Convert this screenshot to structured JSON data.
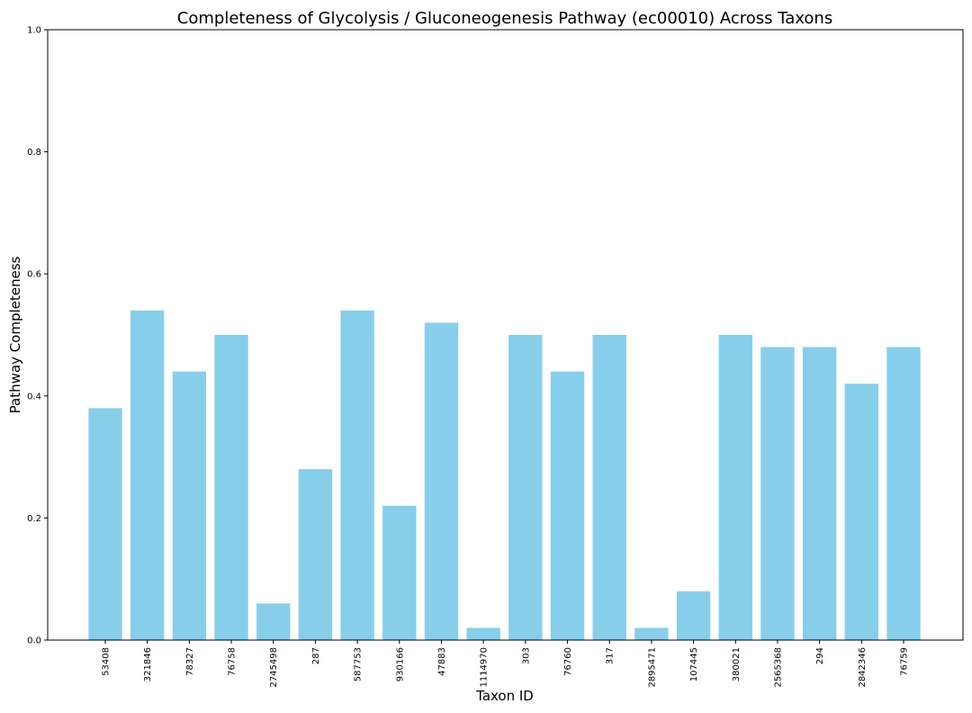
{
  "chart_data": {
    "type": "bar",
    "title": "Completeness of Glycolysis / Gluconeogenesis Pathway (ec00010) Across Taxons",
    "xlabel": "Taxon ID",
    "ylabel": "Pathway Completeness",
    "ylim": [
      0,
      1
    ],
    "yticks": [
      "0.0",
      "0.2",
      "0.4",
      "0.6",
      "0.8",
      "1.0"
    ],
    "categories": [
      "53408",
      "321846",
      "78327",
      "76758",
      "2745498",
      "287",
      "587753",
      "930166",
      "47883",
      "1114970",
      "303",
      "76760",
      "317",
      "2895471",
      "107445",
      "380021",
      "2565368",
      "294",
      "2842346",
      "76759"
    ],
    "values": [
      0.38,
      0.54,
      0.44,
      0.5,
      0.06,
      0.28,
      0.54,
      0.22,
      0.52,
      0.02,
      0.5,
      0.44,
      0.5,
      0.02,
      0.08,
      0.5,
      0.48,
      0.48,
      0.42,
      0.48
    ],
    "bar_color": "#87ceeb",
    "grid": false,
    "legend": "none"
  }
}
